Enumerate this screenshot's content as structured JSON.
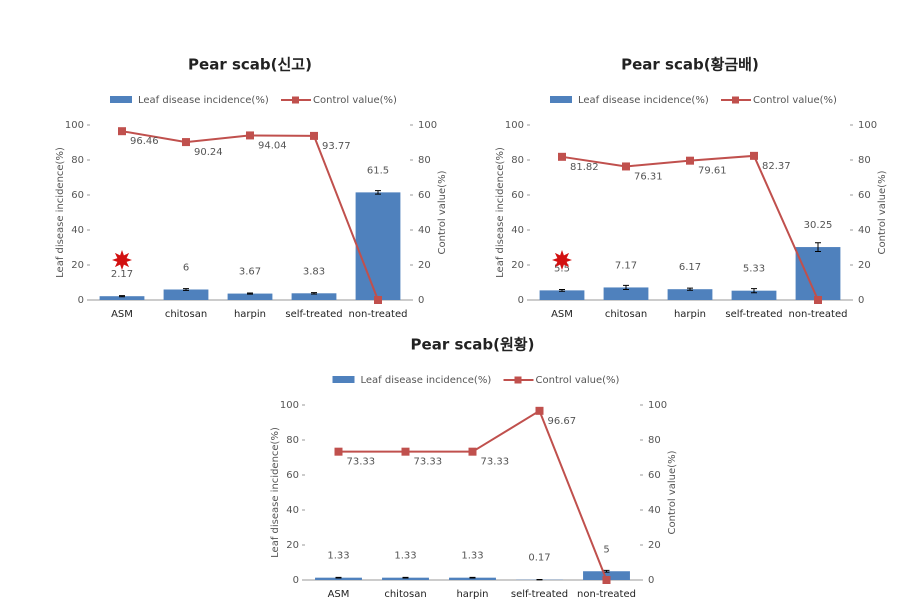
{
  "chart_data": [
    {
      "type": "combo",
      "title": "Pear scab(신고)",
      "categories": [
        "ASM",
        "chitosan",
        "harpin",
        "self-treated",
        "non-treated"
      ],
      "series": [
        {
          "name": "Leaf disease incidence(%)",
          "type": "bar",
          "color": "#4f81bd",
          "values": [
            2.17,
            6,
            3.67,
            3.83,
            61.5
          ],
          "errors": [
            0.3,
            0.5,
            0.3,
            0.4,
            1.0
          ]
        },
        {
          "name": "Control value(%)",
          "type": "line",
          "color": "#c0504d",
          "axis": "y2",
          "values": [
            96.46,
            90.24,
            94.04,
            93.77,
            0
          ],
          "value_labels": [
            "96.46",
            "90.24",
            "94.04",
            "93.77",
            null
          ]
        }
      ],
      "y_label": "Leaf disease incidence(%)",
      "y2_label": "Control value(%)",
      "ylim": [
        0,
        100
      ],
      "yticks": [
        0,
        20,
        40,
        60,
        80,
        100
      ],
      "y2lim": [
        0,
        100
      ],
      "y2ticks": [
        0,
        20,
        40,
        60,
        80,
        100
      ],
      "highlight_star": true,
      "legend": "top"
    },
    {
      "type": "combo",
      "title": "Pear scab(황금배)",
      "categories": [
        "ASM",
        "chitosan",
        "harpin",
        "self-treated",
        "non-treated"
      ],
      "series": [
        {
          "name": "Leaf disease incidence(%)",
          "type": "bar",
          "color": "#4f81bd",
          "values": [
            5.5,
            7.17,
            6.17,
            5.33,
            30.25
          ],
          "errors": [
            0.5,
            1.2,
            0.6,
            1.2,
            2.5
          ]
        },
        {
          "name": "Control value(%)",
          "type": "line",
          "color": "#c0504d",
          "axis": "y2",
          "values": [
            81.82,
            76.31,
            79.61,
            82.37,
            0
          ],
          "value_labels": [
            "81.82",
            "76.31",
            "79.61",
            "82.37",
            null
          ]
        }
      ],
      "y_label": "Leaf disease incidence(%)",
      "y2_label": "Control value(%)",
      "ylim": [
        0,
        100
      ],
      "yticks": [
        0,
        20,
        40,
        60,
        80,
        100
      ],
      "y2lim": [
        0,
        100
      ],
      "y2ticks": [
        0,
        20,
        40,
        60,
        80,
        100
      ],
      "highlight_star": true,
      "legend": "top"
    },
    {
      "type": "combo",
      "title": "Pear scab(원황)",
      "categories": [
        "ASM",
        "chitosan",
        "harpin",
        "self-treated",
        "non-treated"
      ],
      "series": [
        {
          "name": "Leaf disease incidence(%)",
          "type": "bar",
          "color": "#4f81bd",
          "values": [
            1.33,
            1.33,
            1.33,
            0.17,
            5
          ],
          "errors": [
            0.2,
            0.2,
            0.2,
            0.1,
            0.5
          ]
        },
        {
          "name": "Control value(%)",
          "type": "line",
          "color": "#c0504d",
          "axis": "y2",
          "values": [
            73.33,
            73.33,
            73.33,
            96.67,
            0
          ],
          "value_labels": [
            "73.33",
            "73.33",
            "73.33",
            "96.67",
            null
          ]
        }
      ],
      "y_label": "Leaf disease incidence(%)",
      "y2_label": "Control value(%)",
      "ylim": [
        0,
        100
      ],
      "yticks": [
        0,
        20,
        40,
        60,
        80,
        100
      ],
      "y2lim": [
        0,
        100
      ],
      "y2ticks": [
        0,
        20,
        40,
        60,
        80,
        100
      ],
      "highlight_star": false,
      "legend": "top"
    }
  ]
}
